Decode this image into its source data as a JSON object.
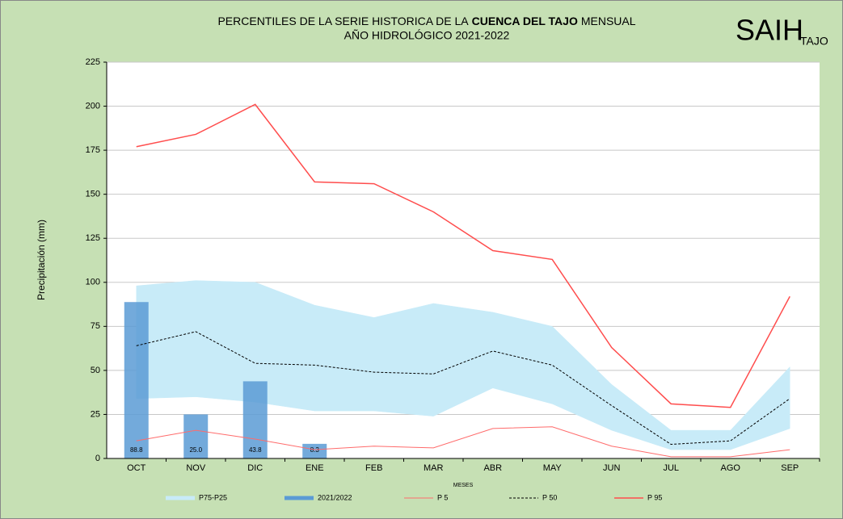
{
  "chart_data": {
    "type": "combo",
    "title": {
      "line1": [
        "PERCENTILES DE LA SERIE HISTORICA DE LA",
        "CUENCA DEL TAJO",
        "MENSUAL"
      ],
      "line2": "AÑO HIDROLÓGICO 2021-2022"
    },
    "logo": {
      "main": "SAIH",
      "sub": "TAJO"
    },
    "y_label": "Precipitación (mm)",
    "x_label": "MESES",
    "categories": [
      "OCT",
      "NOV",
      "DIC",
      "ENE",
      "FEB",
      "MAR",
      "ABR",
      "MAY",
      "JUN",
      "JUL",
      "AGO",
      "SEP"
    ],
    "ylim": [
      0,
      225
    ],
    "yticks": [
      0,
      25,
      50,
      75,
      100,
      125,
      150,
      175,
      200,
      225
    ],
    "grid": true,
    "series": [
      {
        "name": "P75-P25",
        "type": "band",
        "color": "#c8ebf8",
        "high": [
          98,
          101,
          100,
          87,
          80,
          88,
          83,
          75,
          42,
          16,
          16,
          52
        ],
        "low": [
          34,
          35,
          32,
          27,
          27,
          24,
          40,
          31,
          16,
          5,
          5,
          17
        ]
      },
      {
        "name": "2021/2022",
        "type": "bar",
        "color": "#5b9bd5",
        "values": [
          88.8,
          25.0,
          43.8,
          8.3,
          null,
          null,
          null,
          null,
          null,
          null,
          null,
          null
        ],
        "value_labels": [
          "88.8",
          "25.0",
          "43.8",
          "8.3",
          null,
          null,
          null,
          null,
          null,
          null,
          null,
          null
        ]
      },
      {
        "name": "P 5",
        "type": "line",
        "color": "#ff6b6b",
        "width": 1,
        "values": [
          10,
          16,
          11,
          5,
          7,
          6,
          17,
          18,
          7,
          1,
          1,
          5
        ]
      },
      {
        "name": "P 50",
        "type": "line",
        "color": "#000000",
        "width": 1,
        "dash": true,
        "values": [
          64,
          72,
          54,
          53,
          49,
          48,
          61,
          53,
          30,
          8,
          10,
          34
        ]
      },
      {
        "name": "P 95",
        "type": "line",
        "color": "#ff4d4d",
        "width": 1.5,
        "values": [
          177,
          184,
          201,
          157,
          156,
          140,
          118,
          113,
          63,
          31,
          29,
          92
        ]
      }
    ]
  }
}
